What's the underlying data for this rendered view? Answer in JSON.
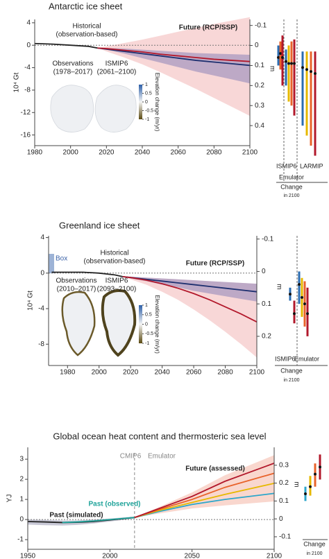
{
  "chart_data": [
    {
      "type": "line",
      "title": "Antarctic ice sheet",
      "ylabel": "10⁴ Gt",
      "y2label": "m",
      "x": [
        1980,
        1990,
        2000,
        2010,
        2015,
        2020,
        2030,
        2040,
        2050,
        2060,
        2070,
        2080,
        2090,
        2100
      ],
      "xlim": [
        1980,
        2100
      ],
      "xticks": [
        1980,
        2000,
        2020,
        2040,
        2060,
        2080,
        2100
      ],
      "ylim": [
        -17.9,
        4.6
      ],
      "yticks": [
        4,
        0,
        -4,
        -8,
        -12,
        -16
      ],
      "y2lim": [
        -0.13,
        0.5
      ],
      "y2_inverted": true,
      "y2ticks": [
        -0.1,
        0,
        0.1,
        0.2,
        0.3,
        0.4
      ],
      "bands": [
        {
          "color": "#f2b6b6",
          "upper": [
            null,
            null,
            null,
            null,
            -0.5,
            -0.2,
            0.4,
            1,
            1.7,
            2.4,
            3.1,
            3.8,
            4.4,
            5
          ],
          "lower": [
            null,
            null,
            null,
            null,
            -0.5,
            -1.1,
            -2.2,
            -3.4,
            -4.8,
            -6.3,
            -7.8,
            -9.4,
            -11,
            -12.6
          ]
        },
        {
          "color": "#8d84b8",
          "upper": [
            null,
            null,
            null,
            null,
            -0.5,
            -0.5,
            -0.6,
            -0.8,
            -1,
            -1.2,
            -1.4,
            -1.5,
            -1.6,
            -1.7
          ],
          "lower": [
            null,
            null,
            null,
            null,
            -0.5,
            -0.8,
            -1.5,
            -2.3,
            -3.1,
            -3.9,
            -4.7,
            -5.4,
            -6.1,
            -6.8
          ]
        }
      ],
      "series": [
        {
          "color": "#222222",
          "values": [
            0.3,
            0.2,
            0,
            -0.2,
            -0.5,
            null,
            null,
            null,
            null,
            null,
            null,
            null,
            null,
            null
          ]
        },
        {
          "color": "#1d2f6f",
          "values": [
            null,
            null,
            null,
            null,
            -0.5,
            -0.7,
            -1.1,
            -1.5,
            -1.9,
            -2.3,
            -2.7,
            -3.0,
            -3.3,
            -3.6
          ]
        },
        {
          "color": "#b2182b",
          "values": [
            null,
            null,
            null,
            null,
            -0.5,
            -0.6,
            -0.9,
            -1.2,
            -1.6,
            -1.9,
            -2.2,
            -2.5,
            -2.7,
            -2.9
          ]
        }
      ],
      "annotations": [
        "Historical",
        "(observation-based)",
        "Future (RCP/SSP)",
        "Observations",
        "(1978–2017)",
        "ISMIP6",
        "(2061–2100)"
      ],
      "colorbar": {
        "label": "Elevation change (m/yr)",
        "ticks": [
          1,
          0.5,
          0,
          -0.5,
          -1
        ]
      },
      "side": {
        "labels": [
          "ISMIP6",
          "LARMIP",
          "Emulator",
          "Change",
          "in 2100"
        ],
        "whiskers": [
          {
            "color": "#2b6cb0",
            "value": 0.06,
            "low": 0.0,
            "high": 0.1
          },
          {
            "color": "#e8622a",
            "value": 0.04,
            "low": -0.02,
            "high": 0.12
          },
          {
            "color": "#b2182b",
            "value": 0.06,
            "low": -0.05,
            "high": 0.2
          },
          {
            "color": "#2b6cb0",
            "value": 0.08,
            "low": 0.02,
            "high": 0.2
          },
          {
            "color": "#e6b800",
            "value": 0.09,
            "low": 0.0,
            "high": 0.28
          },
          {
            "color": "#e8622a",
            "value": 0.09,
            "low": -0.02,
            "high": 0.3
          },
          {
            "color": "#b2182b",
            "value": 0.09,
            "low": -0.03,
            "high": 0.35
          },
          {
            "color": "#2b6cb0",
            "value": 0.11,
            "low": 0.03,
            "high": 0.4
          },
          {
            "color": "#e6b800",
            "value": 0.12,
            "low": 0.03,
            "high": 0.45
          },
          {
            "color": "#e8622a",
            "value": 0.13,
            "low": 0.03,
            "high": 0.5
          },
          {
            "color": "#b2182b",
            "value": 0.14,
            "low": 0.03,
            "high": 0.55
          }
        ]
      }
    },
    {
      "type": "line",
      "title": "Greenland ice sheet",
      "ylabel": "10⁴ Gt",
      "y2label": "m",
      "x": [
        1970,
        1980,
        1990,
        2000,
        2010,
        2015,
        2020,
        2030,
        2040,
        2050,
        2060,
        2070,
        2080,
        2090,
        2100
      ],
      "xlim": [
        1968,
        2100
      ],
      "xticks": [
        1980,
        2000,
        2020,
        2040,
        2060,
        2080,
        2100
      ],
      "ylim": [
        -10.4,
        4.2
      ],
      "yticks": [
        4,
        0,
        -4,
        -8
      ],
      "y2lim": [
        -0.11,
        0.29
      ],
      "y2_inverted": true,
      "y2ticks": [
        -0.1,
        0,
        0.1,
        0.2
      ],
      "bands": [
        {
          "color": "#f2b6b6",
          "upper": [
            null,
            null,
            null,
            null,
            null,
            -0.4,
            -0.4,
            -0.5,
            -0.6,
            -0.7,
            -0.8,
            -0.9,
            -1,
            -1.1,
            -1.2
          ],
          "lower": [
            null,
            null,
            null,
            null,
            null,
            -0.4,
            -0.7,
            -1.3,
            -2.1,
            -3,
            -4.1,
            -5.3,
            -6.6,
            -8,
            -9.5
          ]
        },
        {
          "color": "#8d84b8",
          "upper": [
            null,
            null,
            null,
            null,
            null,
            -0.4,
            -0.4,
            -0.5,
            -0.6,
            -0.7,
            -0.8,
            -0.9,
            -1.0,
            -1.1,
            -1.2
          ],
          "lower": [
            null,
            null,
            null,
            null,
            null,
            -0.4,
            -0.6,
            -0.9,
            -1.3,
            -1.6,
            -2,
            -2.3,
            -2.6,
            -2.9,
            -3.2
          ]
        }
      ],
      "series": [
        {
          "color": "#222222",
          "values": [
            0.1,
            0.1,
            0.1,
            0,
            -0.2,
            -0.4,
            null,
            null,
            null,
            null,
            null,
            null,
            null,
            null,
            null
          ]
        },
        {
          "color": "#1d2f6f",
          "values": [
            null,
            null,
            null,
            null,
            null,
            -0.4,
            -0.5,
            -0.7,
            -0.9,
            -1.1,
            -1.3,
            -1.5,
            -1.7,
            -1.9,
            -2.1
          ]
        },
        {
          "color": "#b2182b",
          "values": [
            null,
            null,
            null,
            null,
            null,
            -0.4,
            -0.5,
            -0.8,
            -1.2,
            -1.7,
            -2.3,
            -3,
            -3.8,
            -4.6,
            -5.5
          ]
        }
      ],
      "annotations": [
        "Box",
        "Historical",
        "(observation-based)",
        "Future (RCP/SSP)",
        "Observations",
        "(2010–2017)",
        "ISMIP6",
        "(2093–2100)"
      ],
      "colorbar": {
        "label": "Elevation change (m/yr)",
        "ticks": [
          1,
          0.5,
          0,
          -0.5,
          -1
        ]
      },
      "side": {
        "labels": [
          "ISMIP6",
          "Emulator",
          "Change",
          "in 2100"
        ],
        "whiskers": [
          {
            "color": "#2b6cb0",
            "value": 0.07,
            "low": 0.05,
            "high": 0.09
          },
          {
            "color": "#b2182b",
            "value": 0.13,
            "low": 0.09,
            "high": 0.16
          },
          {
            "color": "#2b6cb0",
            "value": 0.04,
            "low": 0.0,
            "high": 0.1
          },
          {
            "color": "#e6b800",
            "value": 0.08,
            "low": 0.02,
            "high": 0.14
          },
          {
            "color": "#e8622a",
            "value": 0.1,
            "low": 0.03,
            "high": 0.17
          },
          {
            "color": "#b2182b",
            "value": 0.13,
            "low": 0.05,
            "high": 0.2
          }
        ]
      }
    },
    {
      "type": "line",
      "title": "Global ocean heat content and thermosteric sea level",
      "ylabel": "YJ",
      "y2label": "m",
      "x": [
        1950,
        1960,
        1971,
        1980,
        1990,
        2000,
        2015,
        2030,
        2050,
        2070,
        2100
      ],
      "xlim": [
        1950,
        2100
      ],
      "xticks": [
        1950,
        2000,
        2050,
        2100
      ],
      "ylim": [
        -1.48,
        3.59
      ],
      "yticks": [
        3,
        2,
        1,
        0,
        -1
      ],
      "y2lim": [
        -0.17,
        0.4
      ],
      "y2_inverted": false,
      "y2ticks": [
        0.3,
        0.2,
        0.1,
        0,
        -0.1
      ],
      "divider_x": 2015,
      "bands": [
        {
          "color": "#9a9ab5",
          "upper": [
            0,
            -0.02,
            -0.05,
            -0.05,
            0,
            0.05,
            0.15,
            null,
            null,
            null,
            null
          ],
          "lower": [
            -0.25,
            -0.28,
            -0.3,
            -0.27,
            -0.2,
            -0.1,
            0.05,
            null,
            null,
            null,
            null
          ]
        },
        {
          "color": "#f4b6a6",
          "upper": [
            null,
            null,
            null,
            null,
            null,
            null,
            0.1,
            0.62,
            1.35,
            2.2,
            3.2
          ],
          "lower": [
            null,
            null,
            null,
            null,
            null,
            null,
            0.1,
            0.3,
            0.55,
            0.7,
            0.9
          ]
        }
      ],
      "series": [
        {
          "color": "#222222",
          "values": [
            -0.1,
            -0.12,
            -0.15,
            -0.14,
            -0.1,
            -0.02,
            0.1,
            null,
            null,
            null,
            null
          ]
        },
        {
          "color": "#1fa39a",
          "values": [
            null,
            null,
            -0.15,
            -0.12,
            -0.07,
            0,
            0.1,
            null,
            null,
            null,
            null
          ]
        },
        {
          "color": "#2ba6cb",
          "values": [
            null,
            null,
            null,
            null,
            null,
            null,
            0.1,
            0.4,
            0.75,
            1.0,
            1.3
          ]
        },
        {
          "color": "#e6b800",
          "values": [
            null,
            null,
            null,
            null,
            null,
            null,
            0.1,
            0.45,
            0.85,
            1.25,
            1.8
          ]
        },
        {
          "color": "#e8622a",
          "values": [
            null,
            null,
            null,
            null,
            null,
            null,
            0.1,
            0.5,
            1.0,
            1.6,
            2.3
          ]
        },
        {
          "color": "#b2182b",
          "values": [
            null,
            null,
            null,
            null,
            null,
            null,
            0.1,
            0.55,
            1.15,
            1.9,
            2.8
          ]
        }
      ],
      "annotations": [
        "CMIP6",
        "Emulator",
        "Past (observed)",
        "Past (simulated)",
        "Future (assessed)"
      ],
      "side": {
        "labels": [
          "Change",
          "in 2100"
        ],
        "whiskers": [
          {
            "color": "#2ba6cb",
            "value": 0.14,
            "low": 0.1,
            "high": 0.18
          },
          {
            "color": "#e6b800",
            "value": 0.18,
            "low": 0.13,
            "high": 0.24
          },
          {
            "color": "#e8622a",
            "value": 0.25,
            "low": 0.18,
            "high": 0.31
          },
          {
            "color": "#b2182b",
            "value": 0.29,
            "low": 0.22,
            "high": 0.36
          }
        ]
      }
    }
  ]
}
